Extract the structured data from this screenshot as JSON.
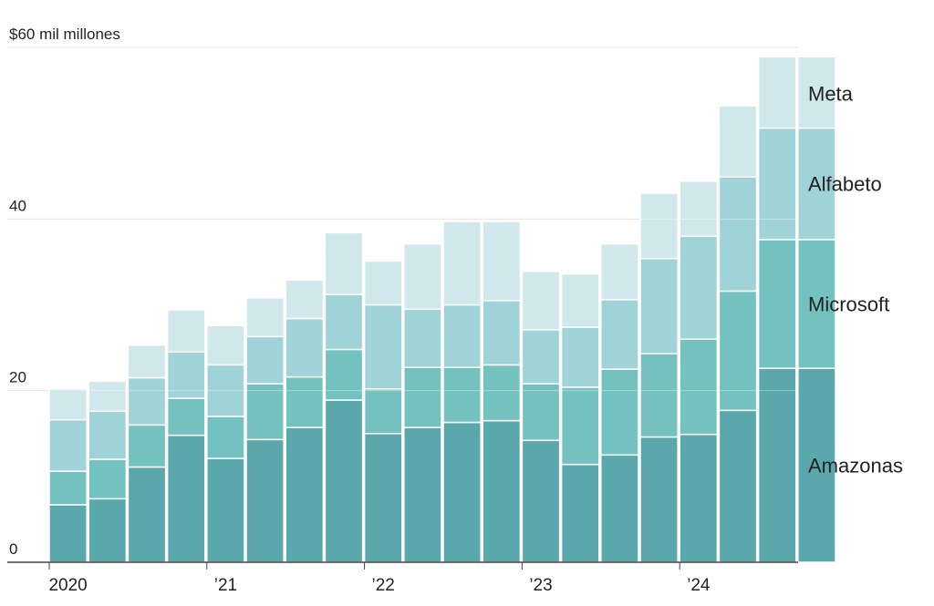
{
  "chart_data": {
    "type": "bar",
    "stacked": true,
    "ylim": [
      0,
      60
    ],
    "y_ticks": [
      {
        "value": 60,
        "label": "$60 mil millones"
      },
      {
        "value": 40,
        "label": "40"
      },
      {
        "value": 20,
        "label": "20"
      },
      {
        "value": 0,
        "label": "0"
      }
    ],
    "x_tick_labels": [
      {
        "index": 0,
        "label": "2020"
      },
      {
        "index": 4,
        "label": "’21"
      },
      {
        "index": 8,
        "label": "’22"
      },
      {
        "index": 12,
        "label": "’23"
      },
      {
        "index": 16,
        "label": "’24"
      }
    ],
    "categories": [
      "2020 T1",
      "2020 T2",
      "2020 T3",
      "2020 T4",
      "2021 T1",
      "2021 T2",
      "2021 T3",
      "2021 T4",
      "2022 T1",
      "2022 T2",
      "2022 T3",
      "2022 T4",
      "2023 T1",
      "2023 T2",
      "2023 T3",
      "2023 T4",
      "2024 T1",
      "2024 T2",
      "2024 T3",
      "2024 T4"
    ],
    "series": [
      {
        "name": "Amazonas",
        "color": "#5aa8ab",
        "values": [
          6.7,
          7.4,
          11.1,
          14.8,
          12.1,
          14.3,
          15.7,
          18.9,
          15.0,
          15.7,
          16.3,
          16.5,
          14.2,
          11.4,
          12.5,
          14.6,
          14.9,
          17.7,
          22.6,
          22.6
        ]
      },
      {
        "name": "Microsoft",
        "color": "#74c2bf",
        "values": [
          3.9,
          4.6,
          4.9,
          4.3,
          4.9,
          6.5,
          5.9,
          5.9,
          5.2,
          7.0,
          6.4,
          6.5,
          6.6,
          9.0,
          10.0,
          9.7,
          11.1,
          13.9,
          15.0,
          15.0
        ]
      },
      {
        "name": "Alfabeto",
        "color": "#a0d3d7",
        "values": [
          6.0,
          5.6,
          5.5,
          5.4,
          6.0,
          5.5,
          6.8,
          6.4,
          9.8,
          6.8,
          7.3,
          7.5,
          6.3,
          7.0,
          8.1,
          11.1,
          12.0,
          13.3,
          13.0,
          13.0
        ]
      },
      {
        "name": "Meta",
        "color": "#d0e7eb",
        "values": [
          3.6,
          3.5,
          3.8,
          4.9,
          4.6,
          4.5,
          4.5,
          7.2,
          5.1,
          7.6,
          9.7,
          9.2,
          6.8,
          6.2,
          6.5,
          7.6,
          6.4,
          8.3,
          8.3,
          8.3
        ]
      }
    ]
  }
}
